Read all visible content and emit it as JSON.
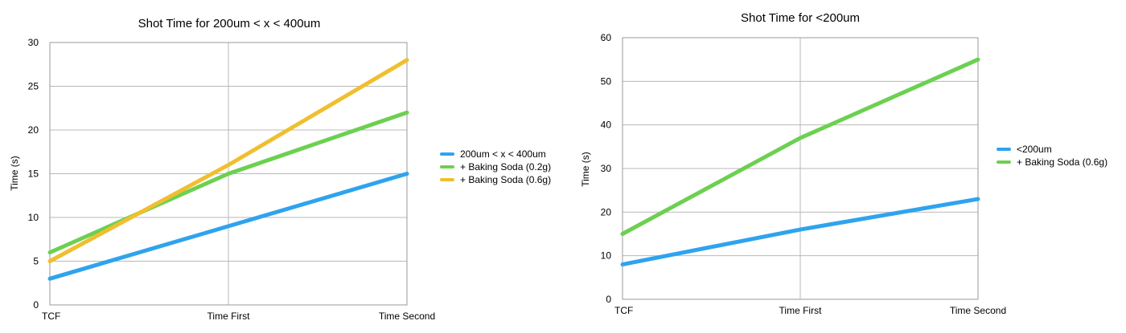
{
  "chart_data": [
    {
      "type": "line",
      "title": "Shot Time for 200um < x < 400um",
      "xlabel": "",
      "ylabel": "Time (s)",
      "categories": [
        "TCF",
        "Time First",
        "Time Second"
      ],
      "ylim": [
        0,
        30
      ],
      "yticks": [
        "0",
        "5",
        "10",
        "15",
        "20",
        "25",
        "30"
      ],
      "grid": true,
      "legend_position": "right",
      "series": [
        {
          "name": "200um < x < 400um",
          "values": [
            3,
            9,
            15
          ],
          "color": "#2fa3ee"
        },
        {
          "name": "+ Baking Soda (0.2g)",
          "values": [
            6,
            15,
            22
          ],
          "color": "#6cd050"
        },
        {
          "name": "+ Baking Soda (0.6g)",
          "values": [
            5,
            16,
            28
          ],
          "color": "#f0bf2f"
        }
      ]
    },
    {
      "type": "line",
      "title": "Shot Time for <200um",
      "xlabel": "",
      "ylabel": "Time (s)",
      "categories": [
        "TCF",
        "Time First",
        "Time Second"
      ],
      "ylim": [
        0,
        60
      ],
      "yticks": [
        "0",
        "10",
        "20",
        "30",
        "40",
        "50",
        "60"
      ],
      "grid": true,
      "legend_position": "right",
      "series": [
        {
          "name": "<200um",
          "values": [
            8,
            16,
            23
          ],
          "color": "#2fa3ee"
        },
        {
          "name": "+ Baking Soda (0.6g)",
          "values": [
            15,
            37,
            55
          ],
          "color": "#6cd050"
        }
      ]
    }
  ]
}
